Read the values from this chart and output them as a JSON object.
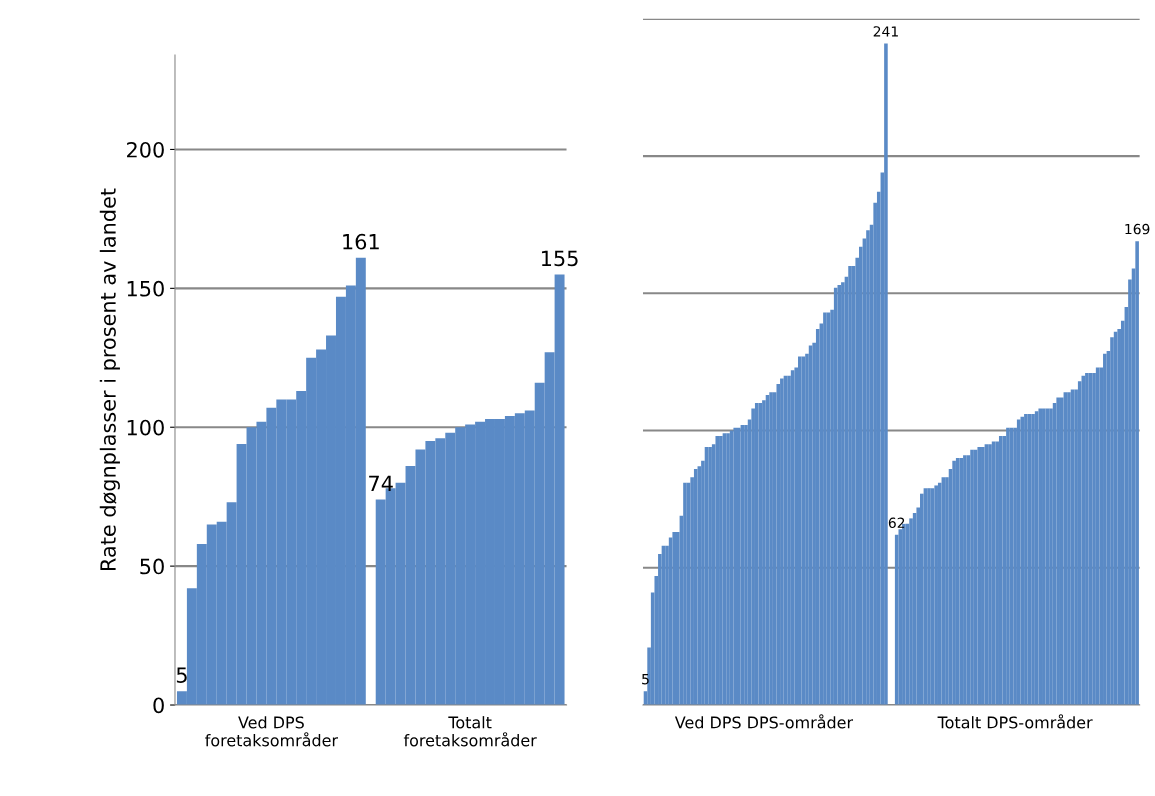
{
  "chart_data": [
    {
      "type": "bar",
      "ylabel": "Rate døgnplasser i prosent av landet",
      "ylim": [
        0,
        234
      ],
      "yticks": [
        0,
        50,
        100,
        150,
        200
      ],
      "grid": "y",
      "color": "#5a8ac6",
      "categories": [
        null,
        null,
        null,
        null,
        null,
        null,
        null,
        null,
        null,
        "Ved DPS\nforetaksområder",
        null,
        null,
        null,
        null,
        null,
        null,
        null,
        null,
        null,
        null,
        null,
        null,
        null,
        null,
        null,
        null,
        null,
        null,
        null,
        "Totalt\nforetaksområder",
        null,
        null,
        null,
        null,
        null,
        null,
        null,
        null,
        null
      ],
      "values": [
        5,
        42,
        58,
        65,
        66,
        73,
        94,
        100,
        102,
        107,
        110,
        110,
        113,
        125,
        128,
        133,
        147,
        151,
        161,
        null,
        74,
        78,
        80,
        86,
        92,
        95,
        96,
        98,
        100,
        101,
        102,
        103,
        103,
        104,
        105,
        106,
        116,
        127,
        155
      ],
      "value_labels": [
        "5",
        null,
        null,
        null,
        null,
        null,
        null,
        null,
        null,
        null,
        null,
        null,
        null,
        null,
        null,
        null,
        null,
        null,
        "161",
        null,
        "74",
        null,
        null,
        null,
        null,
        null,
        null,
        null,
        null,
        null,
        null,
        null,
        null,
        null,
        null,
        null,
        null,
        null,
        "155"
      ]
    },
    {
      "type": "bar",
      "ylim": [
        0,
        250
      ],
      "yticks": [
        {
          "value": 0,
          "label": null
        },
        {
          "value": 50,
          "label": null
        },
        {
          "value": 100,
          "label": null
        },
        {
          "value": 150,
          "label": null
        },
        {
          "value": 200,
          "label": null
        },
        {
          "value": 250,
          "label": null
        }
      ],
      "grid": "y",
      "tick_labels": "x",
      "color": "#5a8ac6",
      "categories": [
        null,
        null,
        null,
        null,
        null,
        null,
        null,
        null,
        null,
        null,
        null,
        null,
        null,
        null,
        null,
        null,
        null,
        null,
        null,
        null,
        null,
        null,
        null,
        null,
        null,
        null,
        null,
        null,
        null,
        null,
        null,
        null,
        null,
        "Ved DPS DPS-områder",
        null,
        null,
        null,
        null,
        null,
        null,
        null,
        null,
        null,
        null,
        null,
        null,
        null,
        null,
        null,
        null,
        null,
        null,
        null,
        null,
        null,
        null,
        null,
        null,
        null,
        null,
        null,
        null,
        null,
        null,
        null,
        null,
        null,
        null,
        null,
        null,
        null,
        null,
        null,
        null,
        null,
        null,
        null,
        null,
        null,
        null,
        null,
        null,
        null,
        null,
        null,
        null,
        null,
        null,
        null,
        null,
        null,
        null,
        null,
        null,
        null,
        null,
        null,
        null,
        null,
        null,
        null,
        null,
        null,
        "Totalt DPS-områder",
        null,
        null,
        null,
        null,
        null,
        null,
        null,
        null,
        null,
        null,
        null,
        null,
        null,
        null,
        null,
        null,
        null,
        null,
        null,
        null,
        null,
        null,
        null,
        null,
        null,
        null,
        null,
        null,
        null,
        null,
        null,
        null,
        null,
        null
      ],
      "values": [
        5,
        21,
        41,
        47,
        55,
        58,
        58,
        61,
        63,
        63,
        69,
        81,
        81,
        83,
        86,
        87,
        89,
        94,
        94,
        95,
        98,
        98,
        99,
        99,
        100,
        101,
        101,
        102,
        102,
        104,
        108,
        110,
        110,
        111,
        113,
        114,
        114,
        117,
        119,
        120,
        120,
        122,
        123,
        127,
        127,
        128,
        131,
        132,
        137,
        139,
        143,
        143,
        144,
        152,
        153,
        154,
        156,
        160,
        160,
        163,
        167,
        170,
        173,
        175,
        183,
        187,
        194,
        241,
        null,
        null,
        62,
        64,
        66,
        66,
        68,
        70,
        72,
        77,
        79,
        79,
        79,
        80,
        81,
        83,
        83,
        86,
        89,
        90,
        90,
        91,
        91,
        93,
        93,
        94,
        94,
        95,
        95,
        96,
        96,
        98,
        98,
        101,
        101,
        101,
        104,
        105,
        106,
        106,
        106,
        107,
        108,
        108,
        108,
        108,
        110,
        112,
        112,
        114,
        114,
        115,
        115,
        118,
        120,
        121,
        121,
        121,
        123,
        123,
        128,
        129,
        134,
        136,
        137,
        140,
        145,
        155,
        159,
        169
      ],
      "value_labels": [
        "5",
        null,
        null,
        null,
        null,
        null,
        null,
        null,
        null,
        null,
        null,
        null,
        null,
        null,
        null,
        null,
        null,
        null,
        null,
        null,
        null,
        null,
        null,
        null,
        null,
        null,
        null,
        null,
        null,
        null,
        null,
        null,
        null,
        null,
        null,
        null,
        null,
        null,
        null,
        null,
        null,
        null,
        null,
        null,
        null,
        null,
        null,
        null,
        null,
        null,
        null,
        null,
        null,
        null,
        null,
        null,
        null,
        null,
        null,
        null,
        null,
        null,
        null,
        null,
        null,
        null,
        null,
        "241",
        null,
        null,
        "62",
        null,
        null,
        null,
        null,
        null,
        null,
        null,
        null,
        null,
        null,
        null,
        null,
        null,
        null,
        null,
        null,
        null,
        null,
        null,
        null,
        null,
        null,
        null,
        null,
        null,
        null,
        null,
        null,
        null,
        null,
        null,
        null,
        null,
        null,
        null,
        null,
        null,
        null,
        null,
        null,
        null,
        null,
        null,
        null,
        null,
        null,
        null,
        null,
        null,
        null,
        null,
        null,
        null,
        null,
        null,
        null,
        null,
        null,
        null,
        null,
        null,
        null,
        null,
        null,
        null,
        null,
        "169"
      ]
    }
  ]
}
